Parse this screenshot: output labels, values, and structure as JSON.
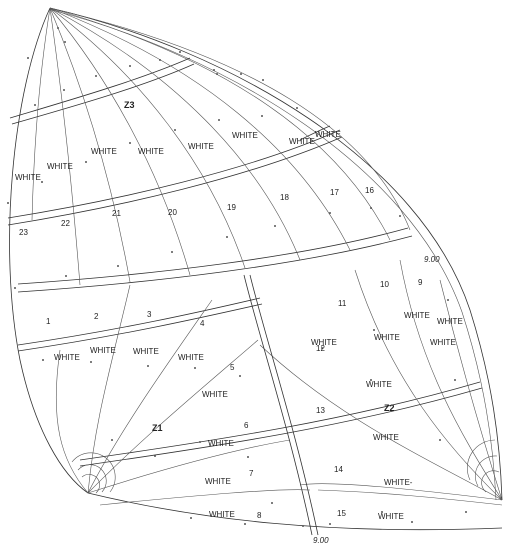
{
  "zones": [
    "Z3",
    "Z1",
    "Z2"
  ],
  "dimensions": [
    "9.00",
    "9.00"
  ],
  "panel_numbers": [
    "1",
    "2",
    "3",
    "4",
    "5",
    "6",
    "7",
    "8",
    "9",
    "10",
    "11",
    "12",
    "13",
    "14",
    "15",
    "16",
    "17",
    "18",
    "19",
    "20",
    "21",
    "22",
    "23"
  ],
  "color_labels": [
    "WHITE",
    "WHITE",
    "WHITE",
    "WHITE",
    "WHITE",
    "WHITE",
    "WHITE",
    "WHITE",
    "WHITE",
    "WHITE",
    "WHITE",
    "WHITE",
    "WHITE",
    "WHITE",
    "WHITE",
    "WHITE",
    "WHITE",
    "WHITE",
    "WHITE",
    "WHITE",
    "WHITE",
    "WHITE-",
    "WHITE",
    "WHITE",
    "WHITE"
  ]
}
